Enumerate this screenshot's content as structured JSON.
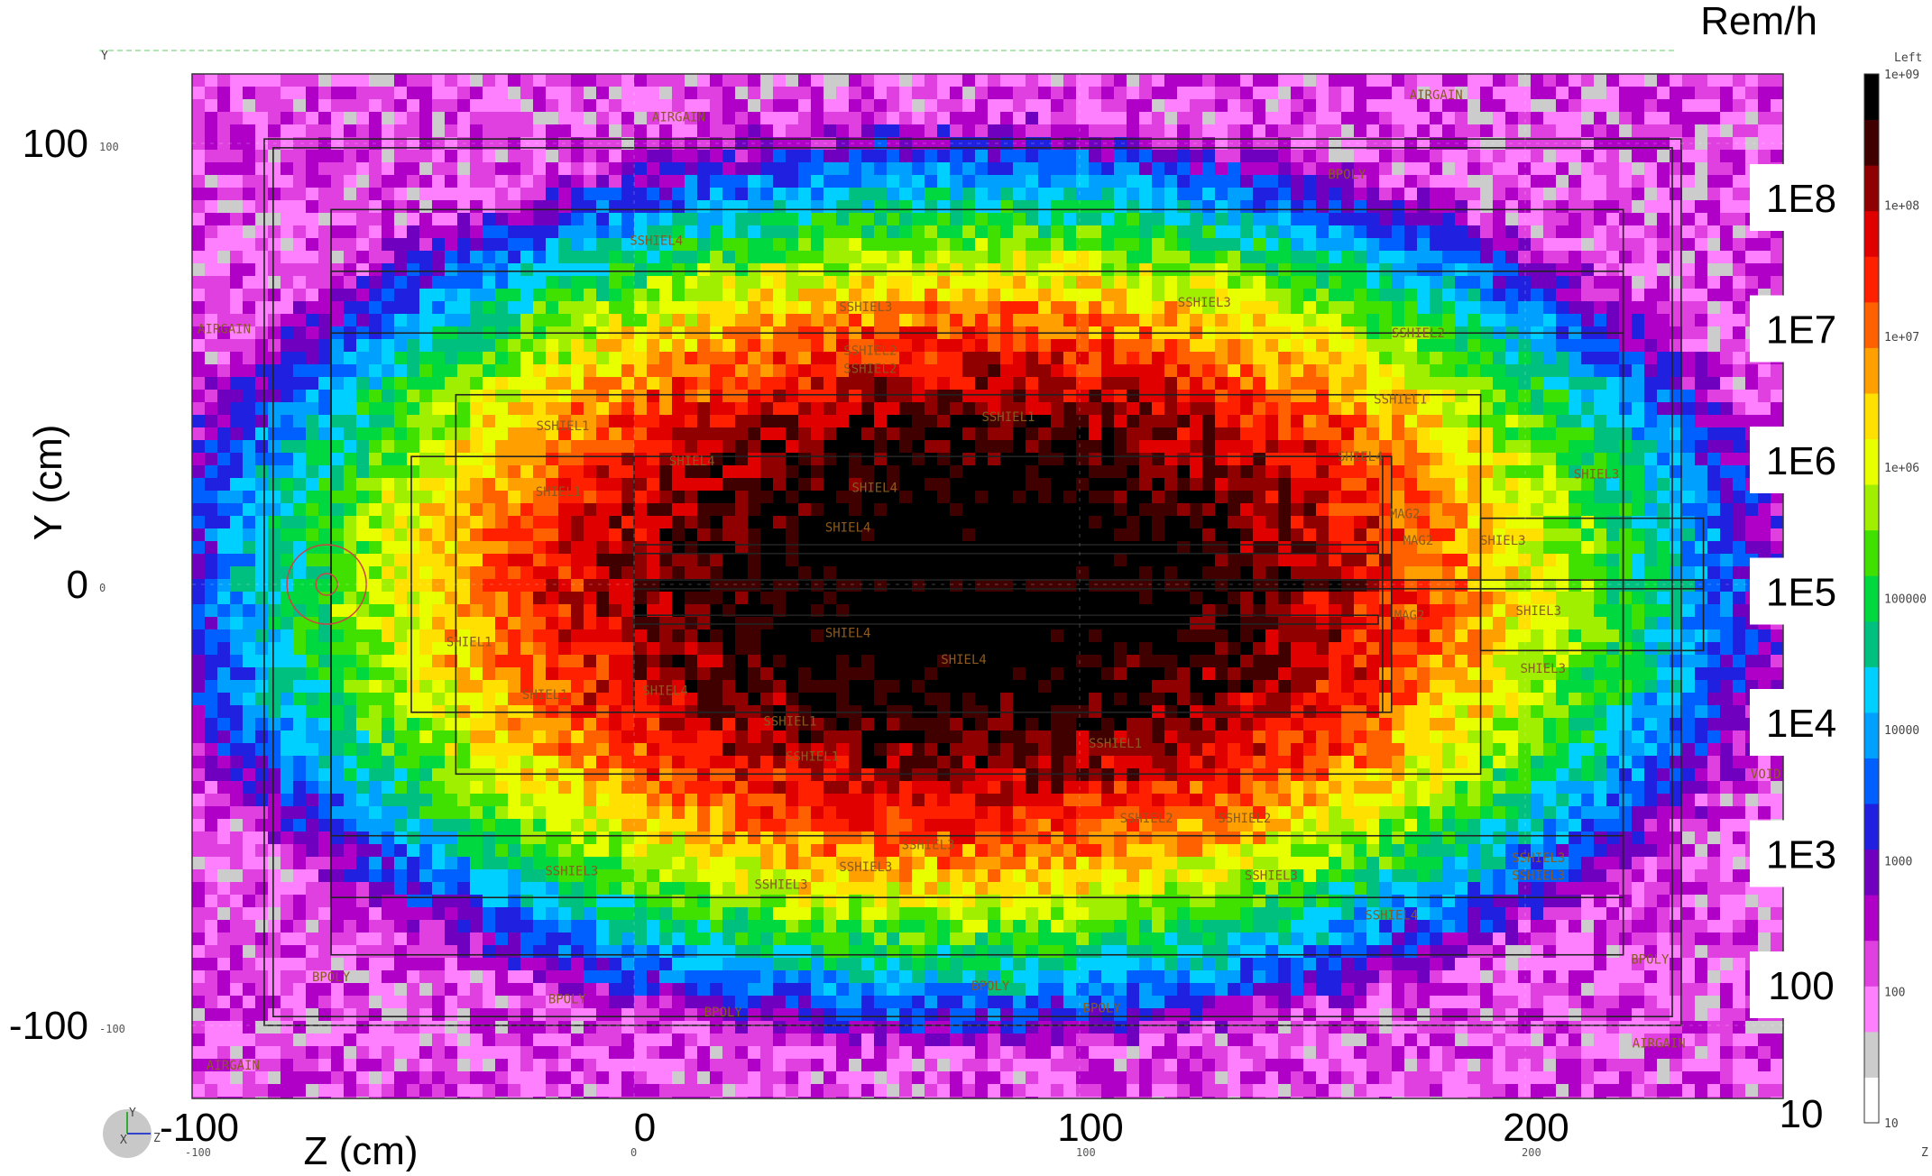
{
  "chart_data": {
    "type": "heatmap",
    "title": "",
    "xlabel": "Z (cm)",
    "ylabel": "Y (cm)",
    "units": "Rem/h",
    "xlim": [
      -100,
      250
    ],
    "ylim": [
      -115,
      115
    ],
    "x_ticks": [
      {
        "value": -100,
        "label": "-100",
        "small": "-100"
      },
      {
        "value": 0,
        "label": "0",
        "small": "0"
      },
      {
        "value": 100,
        "label": "100",
        "small": "100"
      },
      {
        "value": 200,
        "label": "200",
        "small": "200"
      }
    ],
    "y_ticks": [
      {
        "value": 100,
        "label": "100",
        "small": "100"
      },
      {
        "value": 0,
        "label": "0",
        "small": "0"
      },
      {
        "value": -100,
        "label": "-100",
        "small": "-100"
      }
    ],
    "colorbar": {
      "min": 10,
      "max": 1000000000,
      "scale": "log",
      "ticks": [
        "1e+09",
        "1e+08",
        "1e+07",
        "1e+06",
        "100000",
        "10000",
        "1000",
        "100",
        "10"
      ],
      "big_labels": [
        "1E8",
        "1E7",
        "1E6",
        "1E5",
        "1E4",
        "1E3",
        "100",
        "10"
      ],
      "colors": [
        "#ffffff",
        "#cccccc",
        "#ff80ff",
        "#e040e0",
        "#b000c8",
        "#7000c0",
        "#2020e0",
        "#0060ff",
        "#00a0ff",
        "#00d0ff",
        "#00c080",
        "#00d840",
        "#40e000",
        "#a0ee00",
        "#e8ff00",
        "#ffe000",
        "#ffa000",
        "#ff6000",
        "#ff2000",
        "#e00000",
        "#900000",
        "#400000",
        "#000000"
      ]
    },
    "peak_value": 1000000000,
    "background_value": 10
  },
  "corner": {
    "top_left_axis": "Y",
    "top_right": "Left",
    "bottom_right": "Z",
    "orient_y": "Y",
    "orient_z": "Z",
    "orient_x": "X"
  },
  "regions": [
    {
      "label": "AIRGAIN",
      "z": 10,
      "y": 105
    },
    {
      "label": "AIRGAIN",
      "z": 180,
      "y": 110
    },
    {
      "label": "AIRGAIN",
      "z": -92,
      "y": 57
    },
    {
      "label": "AIRGAIN",
      "z": -90,
      "y": -110
    },
    {
      "label": "AIRGAIN",
      "z": 230,
      "y": -105
    },
    {
      "label": "BPOLY",
      "z": 160,
      "y": 92
    },
    {
      "label": "BPOLY",
      "z": -68,
      "y": -90
    },
    {
      "label": "BPOLY",
      "z": -15,
      "y": -95
    },
    {
      "label": "BPOLY",
      "z": 20,
      "y": -98
    },
    {
      "label": "BPOLY",
      "z": 80,
      "y": -92
    },
    {
      "label": "BPOLY",
      "z": 105,
      "y": -97
    },
    {
      "label": "BPOLY",
      "z": 228,
      "y": -86
    },
    {
      "label": "SSHIEL4",
      "z": 5,
      "y": 77
    },
    {
      "label": "SSHIEL3",
      "z": 52,
      "y": 62
    },
    {
      "label": "SSHIEL3",
      "z": 128,
      "y": 63
    },
    {
      "label": "SSHIEL2",
      "z": 53,
      "y": 52
    },
    {
      "label": "SSHIEL2",
      "z": 53,
      "y": 48
    },
    {
      "label": "SSHIEL2",
      "z": 176,
      "y": 56
    },
    {
      "label": "SSHIEL1",
      "z": 84,
      "y": 37
    },
    {
      "label": "SSHIEL1",
      "z": -16,
      "y": 35
    },
    {
      "label": "SSHIEL1",
      "z": 172,
      "y": 41
    },
    {
      "label": "SHIEL1",
      "z": -17,
      "y": 20
    },
    {
      "label": "SHIEL4",
      "z": 13,
      "y": 27
    },
    {
      "label": "SHIEL4",
      "z": 54,
      "y": 21
    },
    {
      "label": "SHIEL4",
      "z": 48,
      "y": 12
    },
    {
      "label": "SHIEL4",
      "z": 163,
      "y": 28
    },
    {
      "label": "SHIEL3",
      "z": 216,
      "y": 24
    },
    {
      "label": "SHIEL3",
      "z": 195,
      "y": 9
    },
    {
      "label": "SHIEL3",
      "z": 203,
      "y": -7
    },
    {
      "label": "SHIEL3",
      "z": 204,
      "y": -20
    },
    {
      "label": "MAG2",
      "z": 173,
      "y": 15
    },
    {
      "label": "MAG2",
      "z": 176,
      "y": 9
    },
    {
      "label": "MAG2",
      "z": 174,
      "y": -8
    },
    {
      "label": "SHIEL4",
      "z": 48,
      "y": -12
    },
    {
      "label": "SHIEL4",
      "z": 74,
      "y": -18
    },
    {
      "label": "SHIEL4",
      "z": 7,
      "y": -25
    },
    {
      "label": "SHIEL1",
      "z": -37,
      "y": -14
    },
    {
      "label": "SHIEL1",
      "z": -20,
      "y": -26
    },
    {
      "label": "SSHIEL1",
      "z": 35,
      "y": -32
    },
    {
      "label": "SSHIEL1",
      "z": 40,
      "y": -40
    },
    {
      "label": "SSHIEL1",
      "z": 108,
      "y": -37
    },
    {
      "label": "SSHIEL2",
      "z": 115,
      "y": -54
    },
    {
      "label": "SSHIEL2",
      "z": 137,
      "y": -54
    },
    {
      "label": "SSHIEL3",
      "z": 66,
      "y": -60
    },
    {
      "label": "SSHIEL3",
      "z": 52,
      "y": -65
    },
    {
      "label": "SSHIEL3",
      "z": -14,
      "y": -66
    },
    {
      "label": "SSHIEL3",
      "z": 33,
      "y": -69
    },
    {
      "label": "SSHIEL3",
      "z": 143,
      "y": -67
    },
    {
      "label": "SSHIEL3",
      "z": 203,
      "y": -63
    },
    {
      "label": "SSHIEL3",
      "z": 203,
      "y": -67
    },
    {
      "label": "SSHIEL4",
      "z": 170,
      "y": -76
    },
    {
      "label": "VOID",
      "z": 254,
      "y": -44
    }
  ]
}
